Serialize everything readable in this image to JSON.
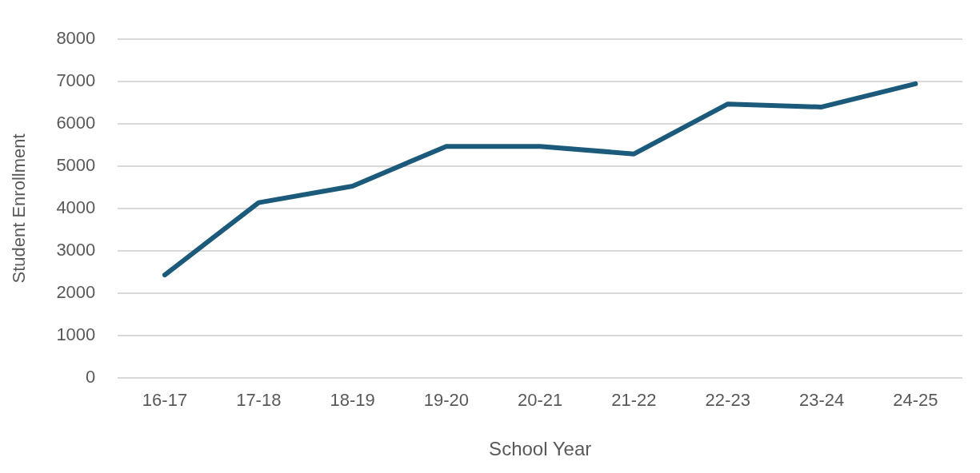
{
  "chart_data": {
    "type": "line",
    "xlabel": "School Year",
    "ylabel": "Student Enrollment",
    "categories": [
      "16-17",
      "17-18",
      "18-19",
      "19-20",
      "20-21",
      "21-22",
      "22-23",
      "23-24",
      "24-25"
    ],
    "series": [
      {
        "color": "#1b5a7a",
        "values": [
          2430,
          4140,
          4530,
          5470,
          5470,
          5290,
          6470,
          6400,
          6950
        ]
      }
    ],
    "ylim": [
      0,
      8000
    ],
    "yticks": [
      0,
      1000,
      2000,
      3000,
      4000,
      5000,
      6000,
      7000,
      8000
    ],
    "grid": "y",
    "legend": false,
    "marker": "none",
    "line_style": "solid"
  }
}
